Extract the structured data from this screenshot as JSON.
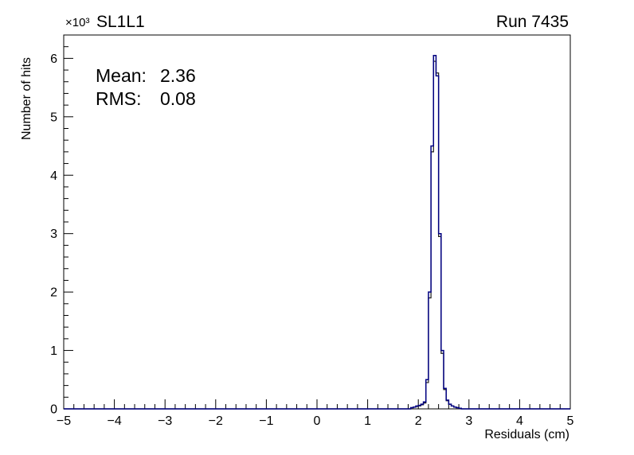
{
  "chart_data": {
    "type": "histogram-step",
    "title": "SL1L1",
    "run_label": "Run 7435",
    "xlabel": "Residuals (cm)",
    "ylabel": "Number of hits",
    "y_axis_multiplier": "×10³",
    "xlim": [
      -5,
      5
    ],
    "ylim": [
      0,
      6.4
    ],
    "x_major_step": 1,
    "x_minor_step": 0.2,
    "y_major_step": 1,
    "y_minor_step": 0.2,
    "x_tick_labels": [
      "−5",
      "−4",
      "−3",
      "−2",
      "−1",
      "0",
      "1",
      "2",
      "3",
      "4",
      "5"
    ],
    "y_tick_labels": [
      "0",
      "1",
      "2",
      "3",
      "4",
      "5",
      "6"
    ],
    "stats": [
      {
        "label": "Mean:",
        "value": "2.36"
      },
      {
        "label": "RMS:",
        "value": "0.08"
      }
    ],
    "bin_start": 1.85,
    "bin_width": 0.05,
    "series": [
      {
        "name": "histogram-outline",
        "color": "#1a1a1a",
        "stroke_width": 1.2,
        "values": [
          0.02,
          0.03,
          0.04,
          0.05,
          0.07,
          0.1,
          0.45,
          1.9,
          4.4,
          5.95,
          5.75,
          2.95,
          0.95,
          0.33,
          0.14,
          0.08,
          0.05,
          0.03,
          0.02,
          0.01
        ]
      },
      {
        "name": "histogram-overlay",
        "color": "#000080",
        "stroke_width": 1.5,
        "values": [
          0.02,
          0.03,
          0.05,
          0.06,
          0.08,
          0.12,
          0.5,
          2.0,
          4.5,
          6.05,
          5.7,
          3.0,
          1.0,
          0.35,
          0.15,
          0.08,
          0.05,
          0.03,
          0.02,
          0.01
        ]
      }
    ]
  }
}
